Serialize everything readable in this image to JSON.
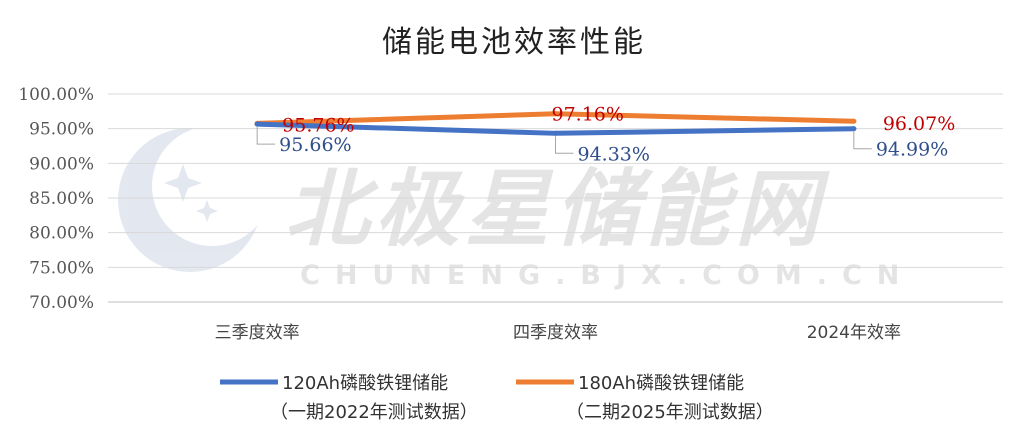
{
  "watermark": {
    "brand": "北极星储能网",
    "domain": "CHUNENG.BJX.COM.CN",
    "logo": "polaris-star-logo-icon"
  },
  "chart_data": {
    "type": "line",
    "title": "储能电池效率性能",
    "xlabel": "",
    "ylabel": "",
    "categories": [
      "三季度效率",
      "四季度效率",
      "2024年效率"
    ],
    "ylim": [
      0.7,
      1.0
    ],
    "yticks": [
      "70.00%",
      "75.00%",
      "80.00%",
      "85.00%",
      "90.00%",
      "95.00%",
      "100.00%"
    ],
    "grid": true,
    "legend_position": "bottom",
    "series": [
      {
        "name_line1": "120Ah磷酸铁锂储能",
        "name_line2": "（一期2022年测试数据）",
        "color": "#4472C4",
        "label_color": "#2F4E8C",
        "values": [
          0.9566,
          0.9433,
          0.9499
        ],
        "labels": [
          "95.66%",
          "94.33%",
          "94.99%"
        ]
      },
      {
        "name_line1": "180Ah磷酸铁锂储能",
        "name_line2": "（二期2025年测试数据）",
        "color": "#ED7D31",
        "label_color": "#C00000",
        "values": [
          0.9576,
          0.9716,
          0.9607
        ],
        "labels": [
          "95.76%",
          "97.16%",
          "96.07%"
        ]
      }
    ]
  }
}
